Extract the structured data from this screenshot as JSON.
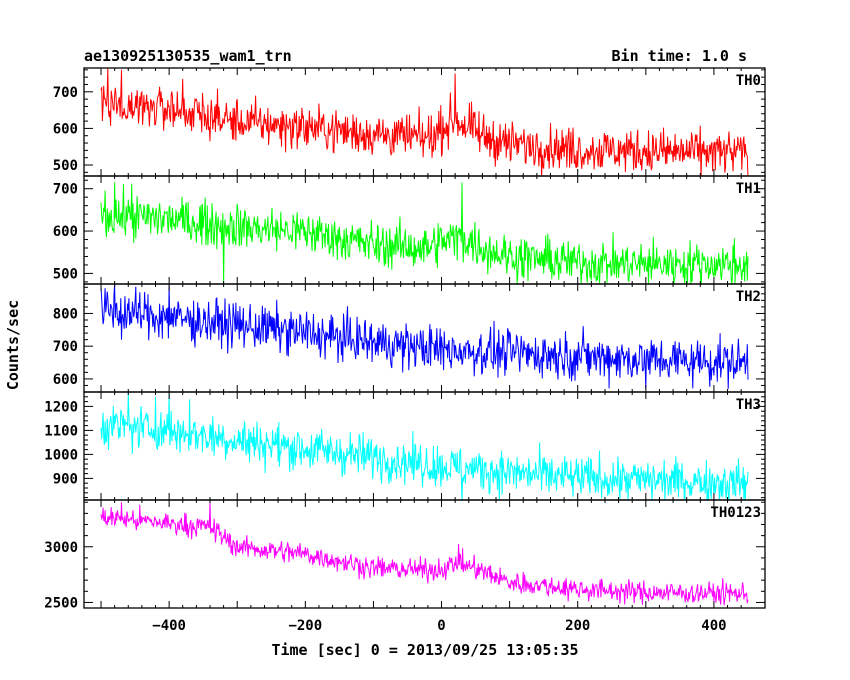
{
  "header": {
    "title": "ae130925130535_wam1_trn",
    "bin_time": "Bin time: 1.0 s"
  },
  "axes": {
    "xlabel": "Time [sec] 0 = 2013/09/25 13:05:35",
    "ylabel": "Counts/sec",
    "xlim": [
      -525,
      475
    ],
    "xticks": [
      -400,
      -200,
      0,
      200,
      400
    ],
    "xtick_labels": [
      "−400",
      "−200",
      "0",
      "200",
      "400"
    ]
  },
  "chart_data": {
    "type": "line",
    "title": "ae130925130535_wam1_trn",
    "xlabel": "Time [sec] 0 = 2013/09/25 13:05:35",
    "ylabel": "Counts/sec",
    "bin_time_s": 1.0,
    "x_range": [
      -500,
      450
    ],
    "x_step": 1,
    "grid": false,
    "legend": "none",
    "series": [
      {
        "name": "TH0",
        "color": "#ff0000",
        "ylim": [
          470,
          765
        ],
        "yticks": [
          500,
          600,
          700
        ],
        "trend": [
          [
            -500,
            670
          ],
          [
            -400,
            655
          ],
          [
            -300,
            618
          ],
          [
            -200,
            603
          ],
          [
            -100,
            585
          ],
          [
            -20,
            572
          ],
          [
            0,
            600
          ],
          [
            20,
            625
          ],
          [
            60,
            580
          ],
          [
            100,
            558
          ],
          [
            200,
            542
          ],
          [
            300,
            538
          ],
          [
            450,
            532
          ]
        ],
        "noise": 30,
        "spikes": [
          [
            -490,
            765
          ],
          [
            -470,
            760
          ],
          [
            -380,
            735
          ],
          [
            20,
            750
          ]
        ]
      },
      {
        "name": "TH1",
        "color": "#00ff00",
        "ylim": [
          475,
          730
        ],
        "yticks": [
          500,
          600,
          700
        ],
        "trend": [
          [
            -500,
            638
          ],
          [
            -400,
            628
          ],
          [
            -300,
            610
          ],
          [
            -200,
            598
          ],
          [
            -100,
            568
          ],
          [
            -20,
            560
          ],
          [
            0,
            575
          ],
          [
            30,
            585
          ],
          [
            60,
            560
          ],
          [
            100,
            540
          ],
          [
            200,
            526
          ],
          [
            300,
            522
          ],
          [
            450,
            522
          ]
        ],
        "noise": 26,
        "spikes": [
          [
            -480,
            715
          ],
          [
            -455,
            712
          ],
          [
            30,
            715
          ],
          [
            -320,
            475
          ]
        ]
      },
      {
        "name": "TH2",
        "color": "#0000ff",
        "ylim": [
          560,
          890
        ],
        "yticks": [
          600,
          700,
          800
        ],
        "trend": [
          [
            -500,
            812
          ],
          [
            -400,
            788
          ],
          [
            -300,
            765
          ],
          [
            -200,
            740
          ],
          [
            -100,
            712
          ],
          [
            0,
            690
          ],
          [
            100,
            680
          ],
          [
            200,
            670
          ],
          [
            300,
            660
          ],
          [
            450,
            650
          ]
        ],
        "noise": 35,
        "spikes": [
          [
            -480,
            888
          ],
          [
            -400,
            885
          ],
          [
            -470,
            720
          ],
          [
            300,
            570
          ]
        ]
      },
      {
        "name": "TH3",
        "color": "#00ffff",
        "ylim": [
          810,
          1260
        ],
        "yticks": [
          900,
          1000,
          1100,
          1200
        ],
        "trend": [
          [
            -500,
            1125
          ],
          [
            -400,
            1098
          ],
          [
            -300,
            1060
          ],
          [
            -200,
            1023
          ],
          [
            -100,
            990
          ],
          [
            0,
            952
          ],
          [
            100,
            925
          ],
          [
            200,
            902
          ],
          [
            300,
            893
          ],
          [
            450,
            882
          ]
        ],
        "noise": 45,
        "spikes": [
          [
            -460,
            1258
          ],
          [
            -420,
            1240
          ],
          [
            -400,
            1252
          ],
          [
            -370,
            1230
          ],
          [
            30,
            800
          ]
        ]
      },
      {
        "name": "TH0123",
        "color": "#ff00ff",
        "ylim": [
          2450,
          3420
        ],
        "yticks": [
          2500,
          3000
        ],
        "trend": [
          [
            -500,
            3270
          ],
          [
            -400,
            3210
          ],
          [
            -340,
            3175
          ],
          [
            -300,
            3000
          ],
          [
            -200,
            2935
          ],
          [
            -100,
            2810
          ],
          [
            -20,
            2790
          ],
          [
            0,
            2800
          ],
          [
            25,
            2860
          ],
          [
            60,
            2780
          ],
          [
            100,
            2680
          ],
          [
            200,
            2620
          ],
          [
            300,
            2590
          ],
          [
            450,
            2580
          ]
        ],
        "noise": 50,
        "spikes": [
          [
            -470,
            3400
          ],
          [
            -340,
            3410
          ],
          [
            25,
            3025
          ]
        ]
      }
    ]
  }
}
